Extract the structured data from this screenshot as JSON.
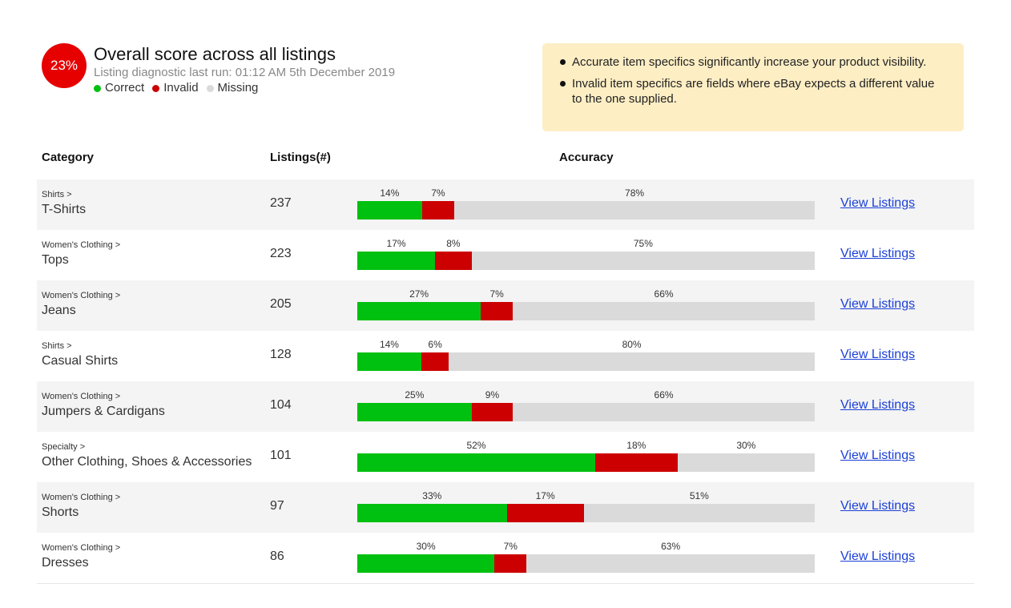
{
  "summary": {
    "score": "23%",
    "title": "Overall score across all listings",
    "last_run": "Listing diagnostic last run: 01:12 AM 5th December 2019",
    "legend": [
      {
        "label": "Correct",
        "color": "#00c010"
      },
      {
        "label": "Invalid",
        "color": "#cc0000"
      },
      {
        "label": "Missing",
        "color": "#dadada"
      }
    ]
  },
  "info": {
    "bullets": [
      "Accurate item specifics significantly increase your product visibility.",
      "Invalid item specifics are fields where eBay expects a different value to the one supplied."
    ]
  },
  "table": {
    "headers": {
      "category": "Category",
      "listings": "Listings(#)",
      "accuracy": "Accuracy"
    },
    "link_label": "View Listings",
    "rows": [
      {
        "parent": "Shirts >",
        "name": "T-Shirts",
        "count": "237",
        "correct": 14,
        "invalid": 7,
        "missing": 78
      },
      {
        "parent": "Women's Clothing >",
        "name": "Tops",
        "count": "223",
        "correct": 17,
        "invalid": 8,
        "missing": 75
      },
      {
        "parent": "Women's Clothing >",
        "name": "Jeans",
        "count": "205",
        "correct": 27,
        "invalid": 7,
        "missing": 66
      },
      {
        "parent": "Shirts >",
        "name": "Casual Shirts",
        "count": "128",
        "correct": 14,
        "invalid": 6,
        "missing": 80
      },
      {
        "parent": "Women's Clothing >",
        "name": "Jumpers & Cardigans",
        "count": "104",
        "correct": 25,
        "invalid": 9,
        "missing": 66
      },
      {
        "parent": "Specialty >",
        "name": "Other Clothing, Shoes & Accessories",
        "count": "101",
        "correct": 52,
        "invalid": 18,
        "missing": 30
      },
      {
        "parent": "Women's Clothing >",
        "name": "Shorts",
        "count": "97",
        "correct": 33,
        "invalid": 17,
        "missing": 51
      },
      {
        "parent": "Women's Clothing >",
        "name": "Dresses",
        "count": "86",
        "correct": 30,
        "invalid": 7,
        "missing": 63
      }
    ]
  }
}
